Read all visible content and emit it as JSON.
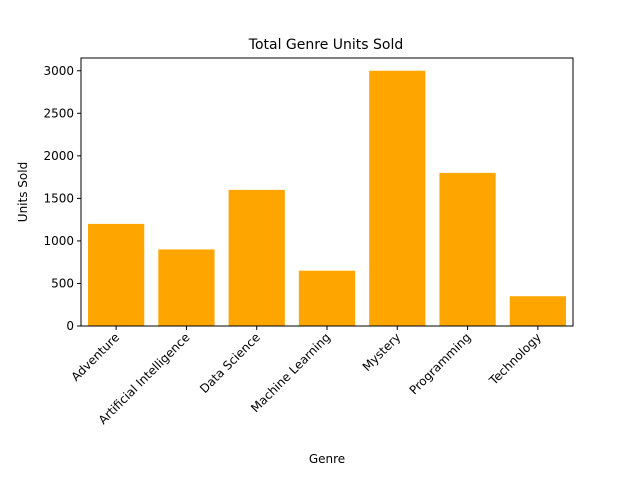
{
  "chart_data": {
    "type": "bar",
    "title": "Total Genre Units Sold",
    "xlabel": "Genre",
    "ylabel": "Units Sold",
    "categories": [
      "Adventure",
      "Artificial Intelligence",
      "Data Science",
      "Machine Learning",
      "Mystery",
      "Programming",
      "Technology"
    ],
    "values": [
      1200,
      900,
      1600,
      650,
      3000,
      1800,
      350
    ],
    "ylim": [
      0,
      3150
    ],
    "yticks": [
      0,
      500,
      1000,
      1500,
      2000,
      2500,
      3000
    ],
    "bar_color": "#ffa500",
    "grid": false,
    "legend": "none"
  }
}
